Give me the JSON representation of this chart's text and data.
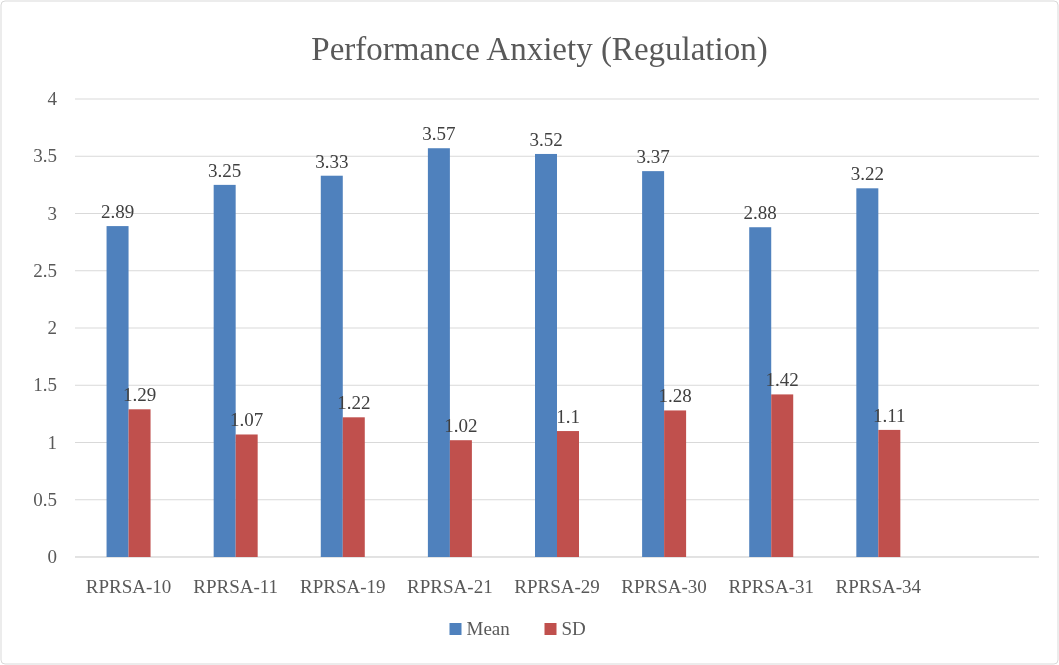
{
  "chart_data": {
    "type": "bar",
    "title": "Performance Anxiety (Regulation)",
    "categories": [
      "RPRSA-10",
      "RPRSA-11",
      "RPRSA-19",
      "RPRSA-21",
      "RPRSA-29",
      "RPRSA-30",
      "RPRSA-31",
      "RPRSA-34",
      null
    ],
    "series": [
      {
        "name": "Mean",
        "color": "#4f81bd",
        "values": [
          2.89,
          3.25,
          3.33,
          3.57,
          3.52,
          3.37,
          2.88,
          3.22,
          null
        ]
      },
      {
        "name": "SD",
        "color": "#c0504d",
        "values": [
          1.29,
          1.07,
          1.22,
          1.02,
          1.1,
          1.28,
          1.42,
          1.11,
          null
        ]
      }
    ],
    "ylim": [
      0,
      4
    ],
    "yticks": [
      0,
      0.5,
      1,
      1.5,
      2,
      2.5,
      3,
      3.5,
      4
    ],
    "grid": "y",
    "legend": "bottom",
    "data_labels": true
  }
}
